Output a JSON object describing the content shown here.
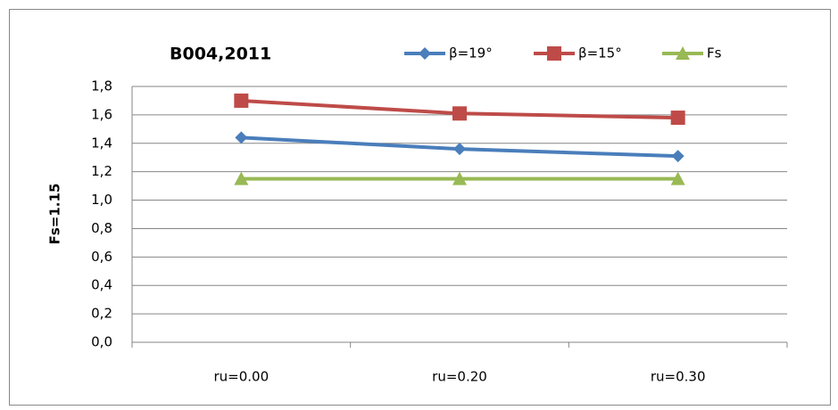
{
  "chart_data": {
    "type": "line",
    "title": "B004,2011",
    "y_label": "Fs=1.15",
    "categories": [
      "ru=0.00",
      "ru=0.20",
      "ru=0.30"
    ],
    "series": [
      {
        "name": "β=19°",
        "color": "#4a7ebb",
        "marker": "diamond",
        "values": [
          1.44,
          1.36,
          1.31
        ]
      },
      {
        "name": "β=15°",
        "color": "#be4b48",
        "marker": "square",
        "values": [
          1.7,
          1.61,
          1.58
        ]
      },
      {
        "name": "Fs",
        "color": "#98b954",
        "marker": "triangle",
        "values": [
          1.15,
          1.15,
          1.15
        ]
      }
    ],
    "ylim": [
      0,
      1.8
    ],
    "yticks": [
      {
        "value": 0,
        "label": "0,0"
      },
      {
        "value": 0.2,
        "label": "0,2"
      },
      {
        "value": 0.4,
        "label": "0,4"
      },
      {
        "value": 0.6,
        "label": "0,6"
      },
      {
        "value": 0.8,
        "label": "0,8"
      },
      {
        "value": 1.0,
        "label": "1,0"
      },
      {
        "value": 1.2,
        "label": "1,2"
      },
      {
        "value": 1.4,
        "label": "1,4"
      },
      {
        "value": 1.6,
        "label": "1,6"
      },
      {
        "value": 1.8,
        "label": "1,8"
      }
    ],
    "grid": true,
    "legend": "top"
  }
}
